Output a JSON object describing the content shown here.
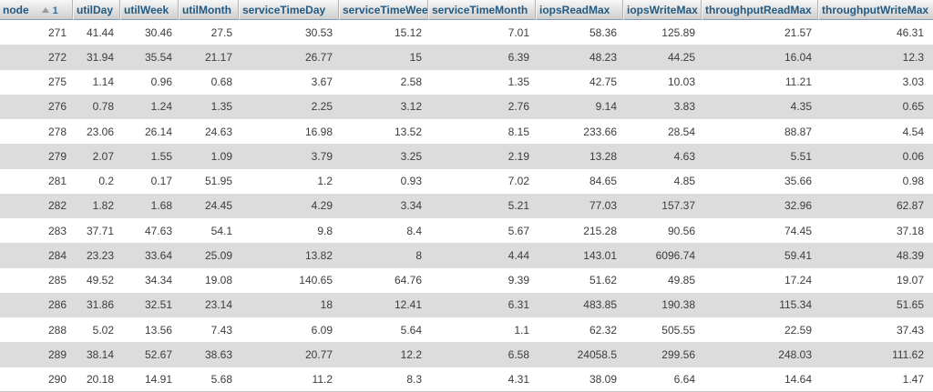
{
  "table": {
    "columns": [
      {
        "key": "node",
        "label": "node"
      },
      {
        "key": "utilDay",
        "label": "utilDay"
      },
      {
        "key": "utilWeek",
        "label": "utilWeek"
      },
      {
        "key": "utilMonth",
        "label": "utilMonth"
      },
      {
        "key": "serviceTimeDay",
        "label": "serviceTimeDay"
      },
      {
        "key": "serviceTimeWeek",
        "label": "serviceTimeWeek"
      },
      {
        "key": "serviceTimeMonth",
        "label": "serviceTimeMonth"
      },
      {
        "key": "iopsReadMax",
        "label": "iopsReadMax"
      },
      {
        "key": "iopsWriteMax",
        "label": "iopsWriteMax"
      },
      {
        "key": "throughputReadMax",
        "label": "throughputReadMax"
      },
      {
        "key": "throughputWriteMax",
        "label": "throughputWriteMax"
      }
    ],
    "sort": {
      "column": "node",
      "direction": "ascending",
      "priority": "1",
      "icon": "sort-asc-icon"
    },
    "rows": [
      [
        "271",
        "41.44",
        "30.46",
        "27.5",
        "30.53",
        "15.12",
        "7.01",
        "58.36",
        "125.89",
        "21.57",
        "46.31"
      ],
      [
        "272",
        "31.94",
        "35.54",
        "21.17",
        "26.77",
        "15",
        "6.39",
        "48.23",
        "44.25",
        "16.04",
        "12.3"
      ],
      [
        "275",
        "1.14",
        "0.96",
        "0.68",
        "3.67",
        "2.58",
        "1.35",
        "42.75",
        "10.03",
        "11.21",
        "3.03"
      ],
      [
        "276",
        "0.78",
        "1.24",
        "1.35",
        "2.25",
        "3.12",
        "2.76",
        "9.14",
        "3.83",
        "4.35",
        "0.65"
      ],
      [
        "278",
        "23.06",
        "26.14",
        "24.63",
        "16.98",
        "13.52",
        "8.15",
        "233.66",
        "28.54",
        "88.87",
        "4.54"
      ],
      [
        "279",
        "2.07",
        "1.55",
        "1.09",
        "3.79",
        "3.25",
        "2.19",
        "13.28",
        "4.63",
        "5.51",
        "0.06"
      ],
      [
        "281",
        "0.2",
        "0.17",
        "51.95",
        "1.2",
        "0.93",
        "7.02",
        "84.65",
        "4.85",
        "35.66",
        "0.98"
      ],
      [
        "282",
        "1.82",
        "1.68",
        "24.45",
        "4.29",
        "3.34",
        "5.21",
        "77.03",
        "157.37",
        "32.96",
        "62.87"
      ],
      [
        "283",
        "37.71",
        "47.63",
        "54.1",
        "9.8",
        "8.4",
        "5.67",
        "215.28",
        "90.56",
        "74.45",
        "37.18"
      ],
      [
        "284",
        "23.23",
        "33.64",
        "25.09",
        "13.82",
        "8",
        "4.44",
        "143.01",
        "6096.74",
        "59.41",
        "48.39"
      ],
      [
        "285",
        "49.52",
        "34.34",
        "19.08",
        "140.65",
        "64.76",
        "9.39",
        "51.62",
        "49.85",
        "17.24",
        "19.07"
      ],
      [
        "286",
        "31.86",
        "32.51",
        "23.14",
        "18",
        "12.41",
        "6.31",
        "483.85",
        "190.38",
        "115.34",
        "51.65"
      ],
      [
        "288",
        "5.02",
        "13.56",
        "7.43",
        "6.09",
        "5.64",
        "1.1",
        "62.32",
        "505.55",
        "22.59",
        "37.43"
      ],
      [
        "289",
        "38.14",
        "52.67",
        "38.63",
        "20.77",
        "12.2",
        "6.58",
        "24058.5",
        "299.56",
        "248.03",
        "111.62"
      ],
      [
        "290",
        "20.18",
        "14.91",
        "5.68",
        "11.2",
        "8.3",
        "4.31",
        "38.09",
        "6.64",
        "14.64",
        "1.47"
      ]
    ]
  },
  "colors": {
    "header_text": "#235a81",
    "header_bg_top": "#f7f7f7",
    "header_bg_bottom": "#cecece",
    "header_border_bottom": "#7f9db9",
    "row_alt_bg": "#dcdcdc",
    "cell_text": "#3c3c3c",
    "sort_priority_text": "#2a6fa8"
  }
}
